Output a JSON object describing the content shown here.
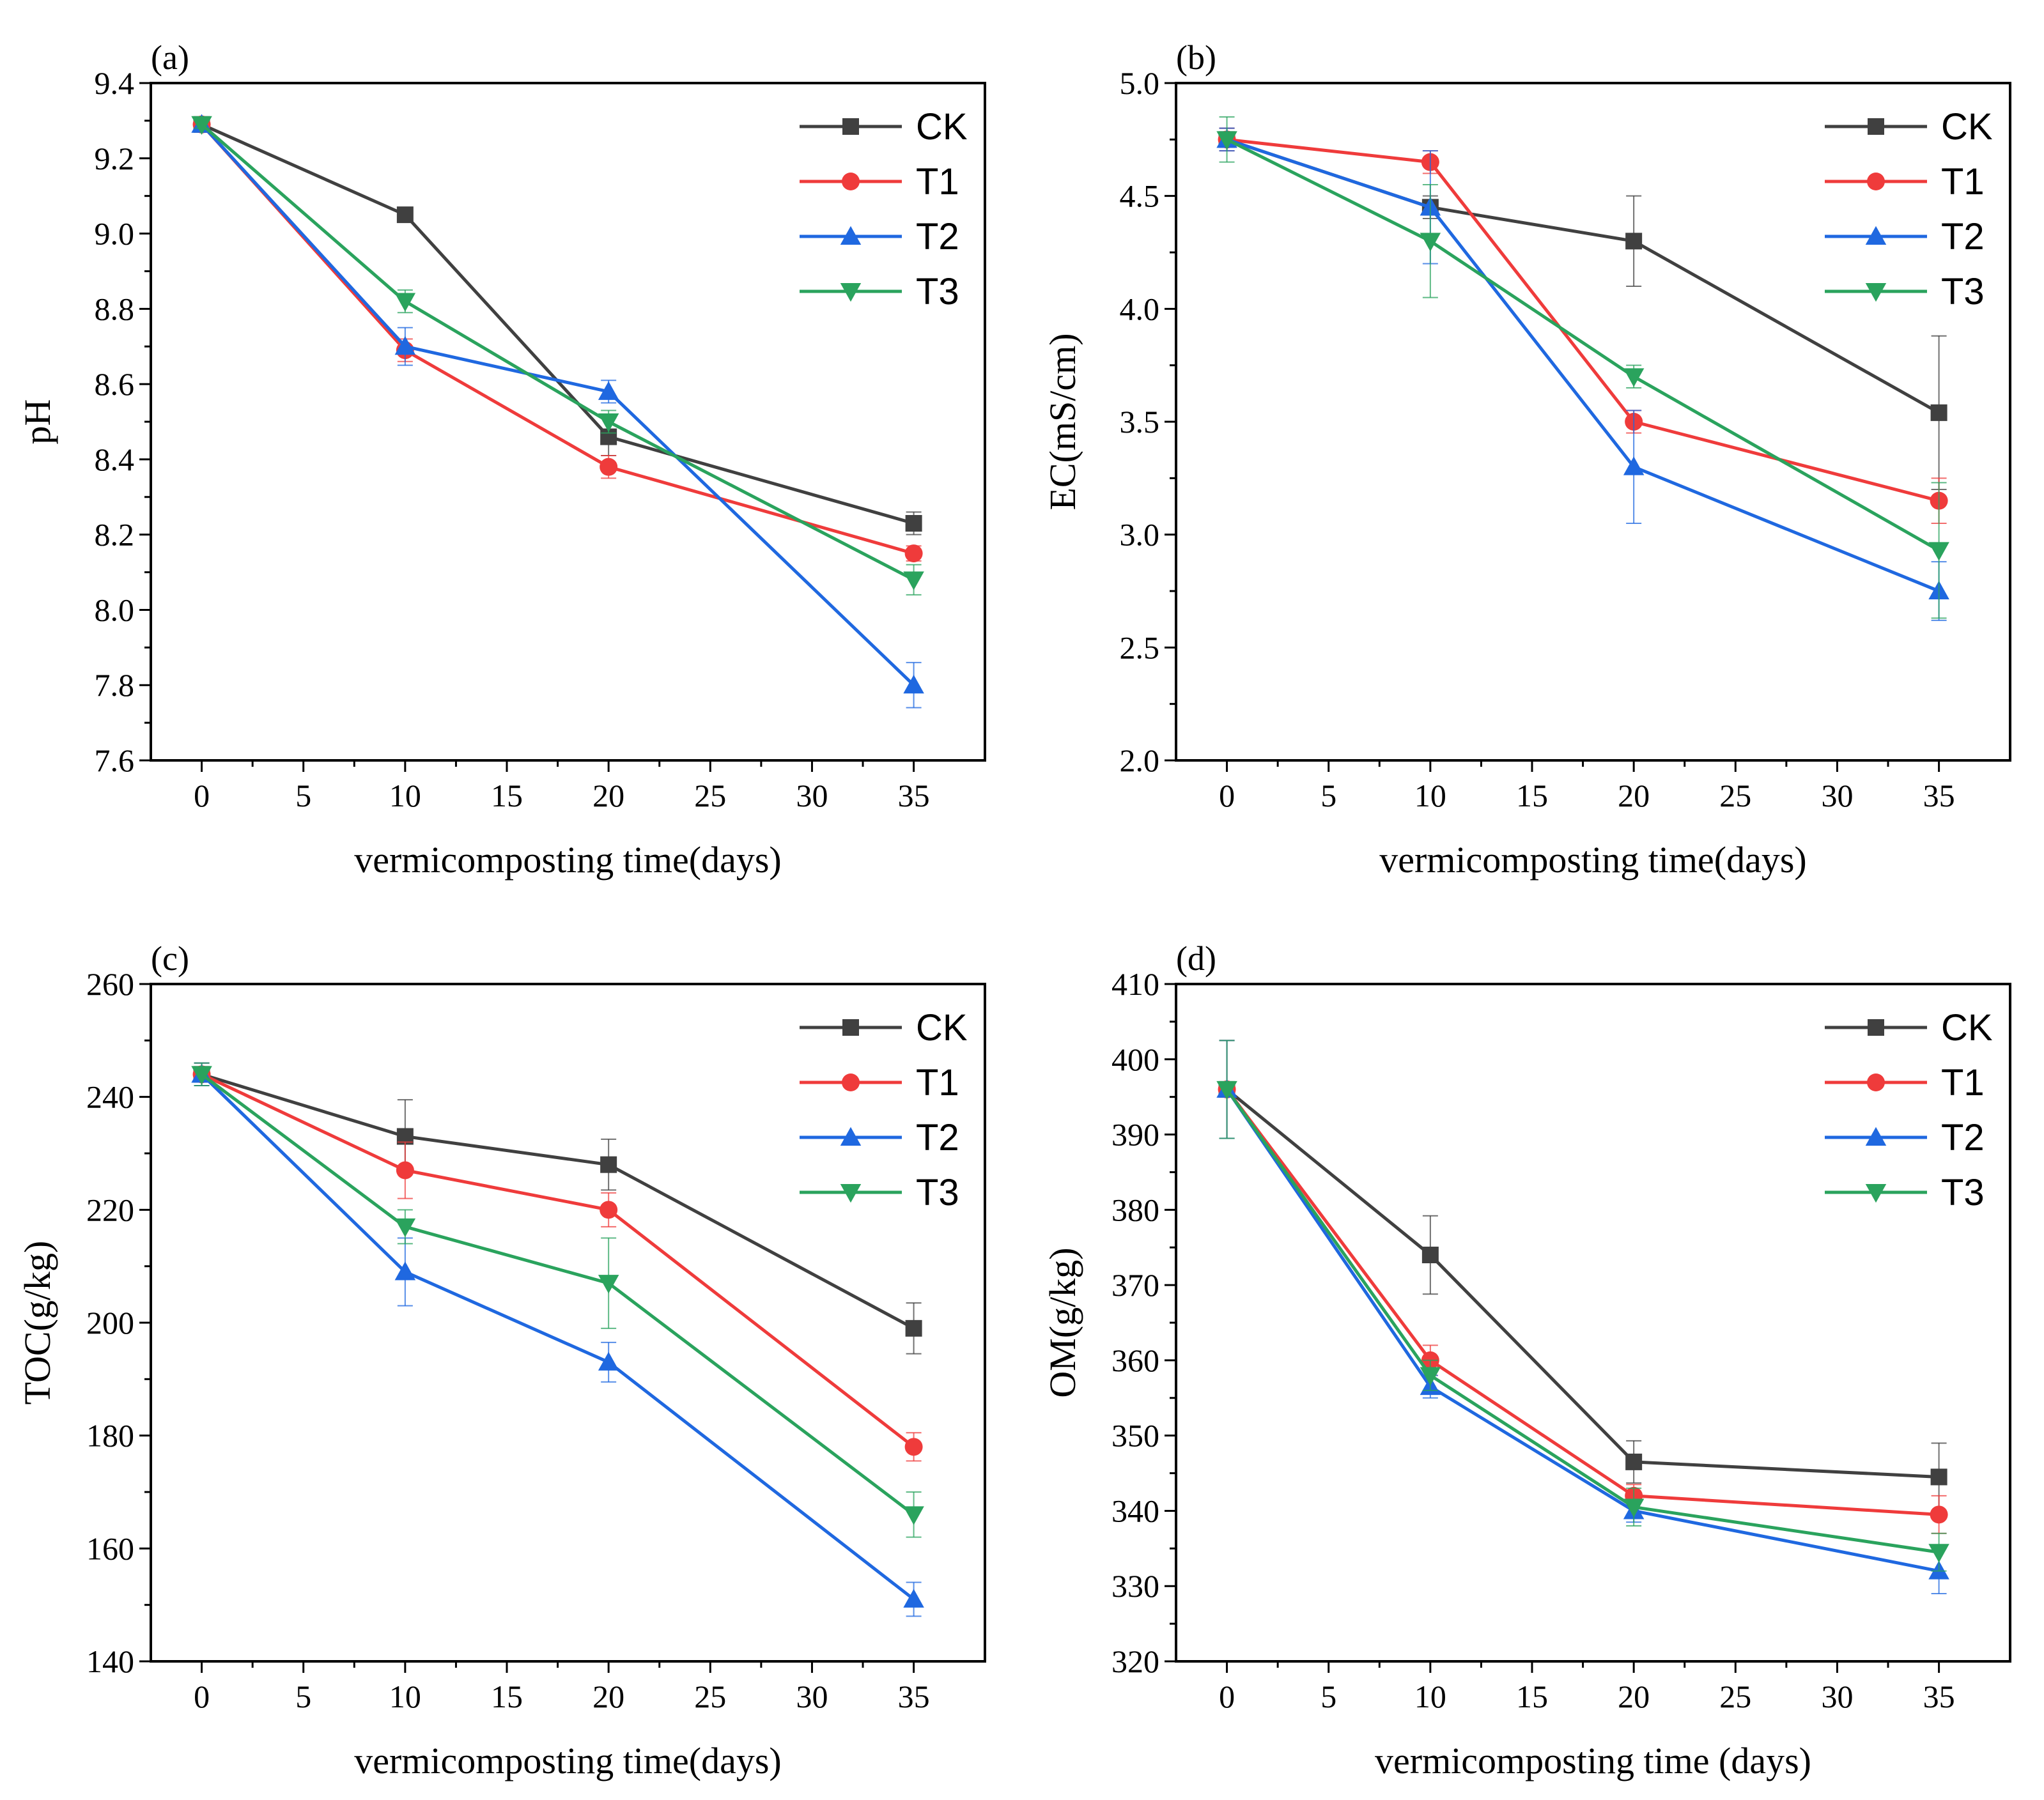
{
  "figure": {
    "title": ""
  },
  "colors": {
    "CK": "#404040",
    "T1": "#ef3b3b",
    "T2": "#1f68e0",
    "T3": "#2aa35d",
    "axis": "#000000"
  },
  "chart_data": [
    {
      "id": "a",
      "type": "line",
      "panel_label": "(a)",
      "xlabel": "vermicomposting time(days)",
      "ylabel": "pH",
      "xlim": [
        -2.5,
        38.5
      ],
      "ylim": [
        7.6,
        9.4
      ],
      "xticks": [
        0,
        5,
        10,
        15,
        20,
        25,
        30,
        35
      ],
      "yticks": [
        7.6,
        7.8,
        8.0,
        8.2,
        8.4,
        8.6,
        8.8,
        9.0,
        9.2,
        9.4
      ],
      "ytick_labels": [
        "7.6",
        "7.8",
        "8.0",
        "8.2",
        "8.4",
        "8.6",
        "8.8",
        "9.0",
        "9.2",
        "9.4"
      ],
      "x": [
        0,
        10,
        20,
        35
      ],
      "legend_position": "top-right",
      "series": [
        {
          "name": "CK",
          "marker": "square",
          "values": [
            9.29,
            9.05,
            8.46,
            8.23
          ],
          "errors": [
            0.01,
            0.01,
            0.05,
            0.03
          ]
        },
        {
          "name": "T1",
          "marker": "circle",
          "values": [
            9.29,
            8.69,
            8.38,
            8.15
          ],
          "errors": [
            0.01,
            0.03,
            0.03,
            0.02
          ]
        },
        {
          "name": "T2",
          "marker": "triangle-up",
          "values": [
            9.29,
            8.7,
            8.58,
            7.8
          ],
          "errors": [
            0.01,
            0.05,
            0.03,
            0.06
          ]
        },
        {
          "name": "T3",
          "marker": "triangle-down",
          "values": [
            9.29,
            8.82,
            8.5,
            8.08
          ],
          "errors": [
            0.01,
            0.03,
            0.03,
            0.04
          ]
        }
      ]
    },
    {
      "id": "b",
      "type": "line",
      "panel_label": "(b)",
      "xlabel": "vermicomposting time(days)",
      "ylabel": "EC(mS/cm)",
      "xlim": [
        -2.5,
        38.5
      ],
      "ylim": [
        2.0,
        5.0
      ],
      "xticks": [
        0,
        5,
        10,
        15,
        20,
        25,
        30,
        35
      ],
      "yticks": [
        2.0,
        2.5,
        3.0,
        3.5,
        4.0,
        4.5,
        5.0
      ],
      "ytick_labels": [
        "2.0",
        "2.5",
        "3.0",
        "3.5",
        "4.0",
        "4.5",
        "5.0"
      ],
      "x": [
        0,
        10,
        20,
        35
      ],
      "legend_position": "top-right",
      "series": [
        {
          "name": "CK",
          "marker": "square",
          "values": [
            4.75,
            4.45,
            4.3,
            3.54
          ],
          "errors": [
            0.05,
            0.05,
            0.2,
            0.34
          ]
        },
        {
          "name": "T1",
          "marker": "circle",
          "values": [
            4.75,
            4.65,
            3.5,
            3.15
          ],
          "errors": [
            0.05,
            0.05,
            0.05,
            0.1
          ]
        },
        {
          "name": "T2",
          "marker": "triangle-up",
          "values": [
            4.75,
            4.45,
            3.3,
            2.75
          ],
          "errors": [
            0.05,
            0.25,
            0.25,
            0.13
          ]
        },
        {
          "name": "T3",
          "marker": "triangle-down",
          "values": [
            4.75,
            4.3,
            3.7,
            2.93
          ],
          "errors": [
            0.1,
            0.25,
            0.05,
            0.3
          ]
        }
      ]
    },
    {
      "id": "c",
      "type": "line",
      "panel_label": "(c)",
      "xlabel": "vermicomposting time(days)",
      "ylabel": "TOC(g/kg)",
      "xlim": [
        -2.5,
        38.5
      ],
      "ylim": [
        140,
        260
      ],
      "xticks": [
        0,
        5,
        10,
        15,
        20,
        25,
        30,
        35
      ],
      "yticks": [
        140,
        160,
        180,
        200,
        220,
        240,
        260
      ],
      "ytick_labels": [
        "140",
        "160",
        "180",
        "200",
        "220",
        "240",
        "260"
      ],
      "x": [
        0,
        10,
        20,
        35
      ],
      "legend_position": "top-right",
      "series": [
        {
          "name": "CK",
          "marker": "square",
          "values": [
            244,
            233,
            228,
            199
          ],
          "errors": [
            2,
            6.5,
            4.5,
            4.5
          ]
        },
        {
          "name": "T1",
          "marker": "circle",
          "values": [
            244,
            227,
            220,
            178
          ],
          "errors": [
            2,
            5,
            3,
            2.5
          ]
        },
        {
          "name": "T2",
          "marker": "triangle-up",
          "values": [
            244,
            209,
            193,
            151
          ],
          "errors": [
            2,
            6,
            3.5,
            3
          ]
        },
        {
          "name": "T3",
          "marker": "triangle-down",
          "values": [
            244,
            217,
            207,
            166
          ],
          "errors": [
            2,
            3,
            8,
            4
          ]
        }
      ]
    },
    {
      "id": "d",
      "type": "line",
      "panel_label": "(d)",
      "xlabel": "vermicomposting time (days)",
      "ylabel": "OM(g/kg)",
      "xlim": [
        -2.5,
        38.5
      ],
      "ylim": [
        320,
        410
      ],
      "xticks": [
        0,
        5,
        10,
        15,
        20,
        25,
        30,
        35
      ],
      "yticks": [
        320,
        330,
        340,
        350,
        360,
        370,
        380,
        390,
        400,
        410
      ],
      "ytick_labels": [
        "320",
        "330",
        "340",
        "350",
        "360",
        "370",
        "380",
        "390",
        "400",
        "410"
      ],
      "x": [
        0,
        10,
        20,
        35
      ],
      "legend_position": "top-right",
      "series": [
        {
          "name": "CK",
          "marker": "square",
          "values": [
            396,
            374,
            346.5,
            344.5
          ],
          "errors": [
            6.5,
            5.2,
            2.8,
            4.5
          ]
        },
        {
          "name": "T1",
          "marker": "circle",
          "values": [
            396,
            360,
            342,
            339.5
          ],
          "errors": [
            6.5,
            2,
            1.5,
            2.5
          ]
        },
        {
          "name": "T2",
          "marker": "triangle-up",
          "values": [
            396,
            356.5,
            340,
            332
          ],
          "errors": [
            6.5,
            1.5,
            1.5,
            3
          ]
        },
        {
          "name": "T3",
          "marker": "triangle-down",
          "values": [
            396,
            358,
            340.5,
            334.5
          ],
          "errors": [
            6.5,
            2,
            2.5,
            2.5
          ]
        }
      ]
    }
  ]
}
